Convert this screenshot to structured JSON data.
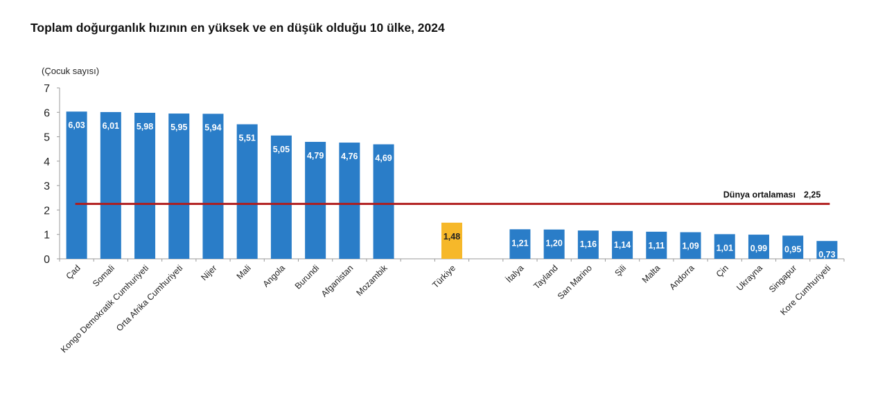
{
  "chart_data": {
    "type": "bar",
    "title": "Toplam doğurganlık hızının en yüksek ve en düşük olduğu 10 ülke, 2024",
    "ylabel": "(Çocuk sayısı)",
    "ylim": [
      0,
      7
    ],
    "yticks": [
      "0",
      "1",
      "2",
      "3",
      "4",
      "5",
      "6",
      "7"
    ],
    "grid": false,
    "categories": [
      "Çad",
      "Somali",
      "Kongo Demokratik Cumhuriyeti",
      "Orta Afrika Cumhuriyeti",
      "Nijer",
      "Mali",
      "Angola",
      "Burundi",
      "Afganistan",
      "Mozambik",
      "",
      "Türkiye",
      "",
      "İtalya",
      "Tayland",
      "San Marino",
      "Şili",
      "Malta",
      "Andorra",
      "Çin",
      "Ukrayna",
      "Singapur",
      "Kore Cumhuriyeti"
    ],
    "values": [
      6.03,
      6.01,
      5.98,
      5.95,
      5.94,
      5.51,
      5.05,
      4.79,
      4.76,
      4.69,
      null,
      1.48,
      null,
      1.21,
      1.2,
      1.16,
      1.14,
      1.11,
      1.09,
      1.01,
      0.99,
      0.95,
      0.73
    ],
    "labels": [
      "6,03",
      "6,01",
      "5,98",
      "5,95",
      "5,94",
      "5,51",
      "5,05",
      "4,79",
      "4,76",
      "4,69",
      "",
      "1,48",
      "",
      "1,21",
      "1,20",
      "1,16",
      "1,14",
      "1,11",
      "1,09",
      "1,01",
      "0,99",
      "0,95",
      "0,73"
    ],
    "highlight": "Türkiye",
    "colors": {
      "bar": "#2a7dc8",
      "highlight": "#f6b82a",
      "reference_line": "#b01c1c"
    },
    "reference_line": {
      "label": "Dünya ortalaması",
      "value": 2.25,
      "value_label": "2,25"
    }
  }
}
